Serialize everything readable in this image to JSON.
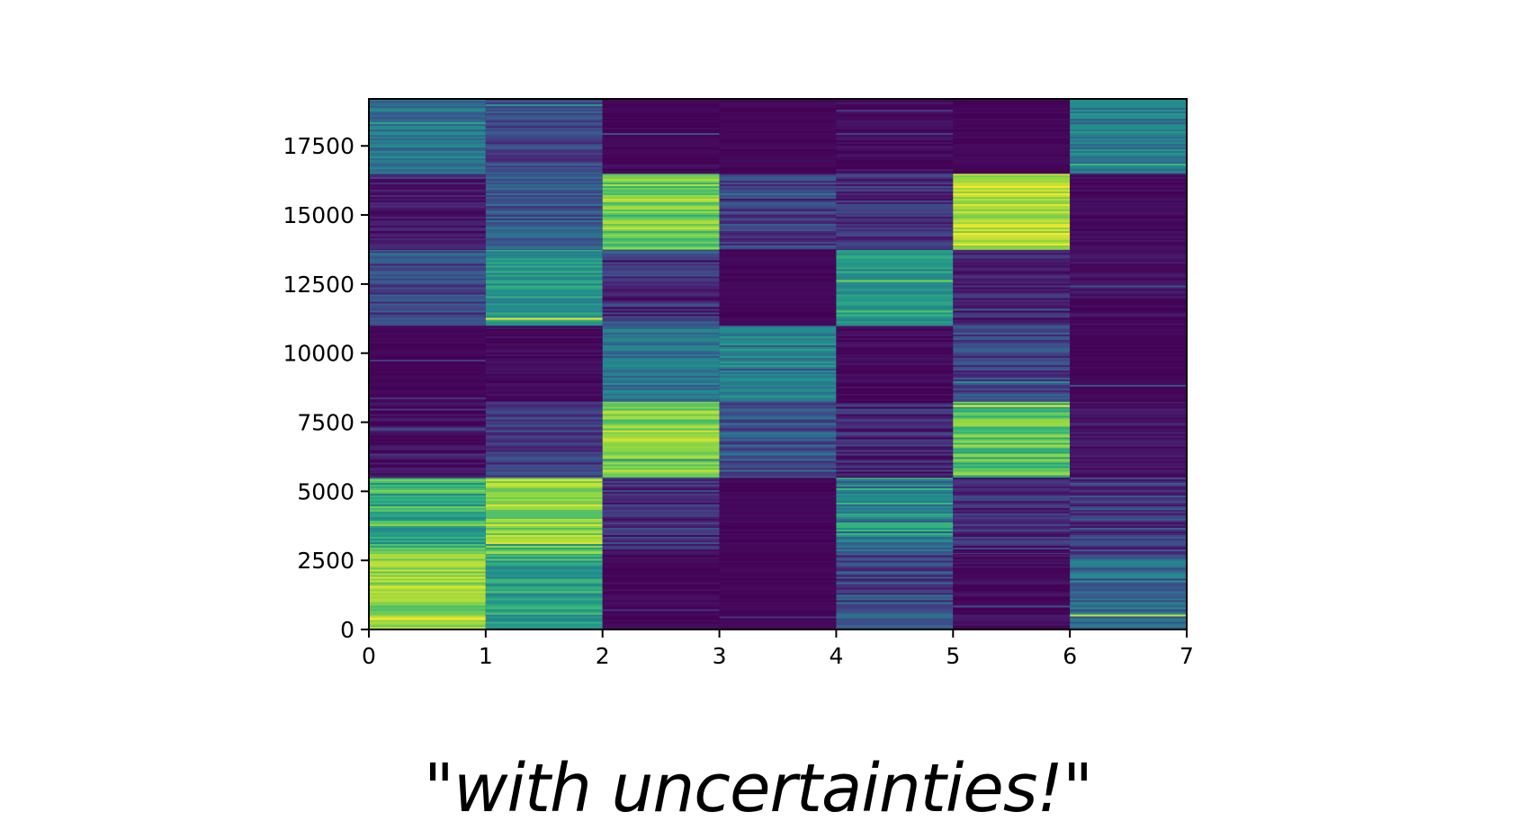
{
  "caption": "\"with uncertainties!\"",
  "colors": {
    "colormap": "viridis",
    "background": "#ffffff",
    "axis": "#000000"
  },
  "chart_data": {
    "type": "heatmap",
    "title": "",
    "xlabel": "",
    "ylabel": "",
    "colormap": "viridis",
    "xlim": [
      0,
      7
    ],
    "ylim": [
      0,
      19200
    ],
    "x_ticks": [
      0,
      1,
      2,
      3,
      4,
      5,
      6,
      7
    ],
    "y_ticks": [
      0,
      2500,
      5000,
      7500,
      10000,
      12500,
      15000,
      17500
    ],
    "x_tick_labels": [
      "0",
      "1",
      "2",
      "3",
      "4",
      "5",
      "6",
      "7"
    ],
    "y_tick_labels": [
      "0",
      "2500",
      "5000",
      "7500",
      "10000",
      "12500",
      "15000",
      "17500"
    ],
    "columns": [
      0,
      1,
      2,
      3,
      4,
      5,
      6
    ],
    "row_blocks": [
      {
        "y_start": 0,
        "y_end": 2750
      },
      {
        "y_start": 2750,
        "y_end": 5500
      },
      {
        "y_start": 5500,
        "y_end": 8250
      },
      {
        "y_start": 8250,
        "y_end": 11000
      },
      {
        "y_start": 11000,
        "y_end": 13750
      },
      {
        "y_start": 13750,
        "y_end": 16500
      },
      {
        "y_start": 16500,
        "y_end": 19200
      }
    ],
    "values": [
      [
        0.88,
        0.68,
        0.02,
        0.02,
        0.3,
        0.04,
        0.42
      ],
      [
        0.72,
        0.88,
        0.18,
        0.02,
        0.55,
        0.14,
        0.22
      ],
      [
        0.05,
        0.24,
        0.86,
        0.34,
        0.14,
        0.78,
        0.07
      ],
      [
        0.02,
        0.04,
        0.48,
        0.55,
        0.04,
        0.26,
        0.02
      ],
      [
        0.26,
        0.62,
        0.16,
        0.02,
        0.65,
        0.12,
        0.06
      ],
      [
        0.08,
        0.34,
        0.82,
        0.22,
        0.16,
        0.92,
        0.04
      ],
      [
        0.48,
        0.28,
        0.02,
        0.02,
        0.04,
        0.02,
        0.52
      ]
    ],
    "noise": [
      [
        0.1,
        0.14,
        0.04,
        0.02,
        0.22,
        0.06,
        0.22
      ],
      [
        0.16,
        0.1,
        0.14,
        0.02,
        0.24,
        0.14,
        0.16
      ],
      [
        0.08,
        0.14,
        0.1,
        0.2,
        0.14,
        0.12,
        0.06
      ],
      [
        0.02,
        0.04,
        0.14,
        0.12,
        0.04,
        0.16,
        0.02
      ],
      [
        0.16,
        0.12,
        0.16,
        0.02,
        0.1,
        0.12,
        0.06
      ],
      [
        0.08,
        0.16,
        0.1,
        0.16,
        0.12,
        0.08,
        0.04
      ],
      [
        0.14,
        0.16,
        0.02,
        0.02,
        0.04,
        0.02,
        0.14
      ]
    ]
  }
}
